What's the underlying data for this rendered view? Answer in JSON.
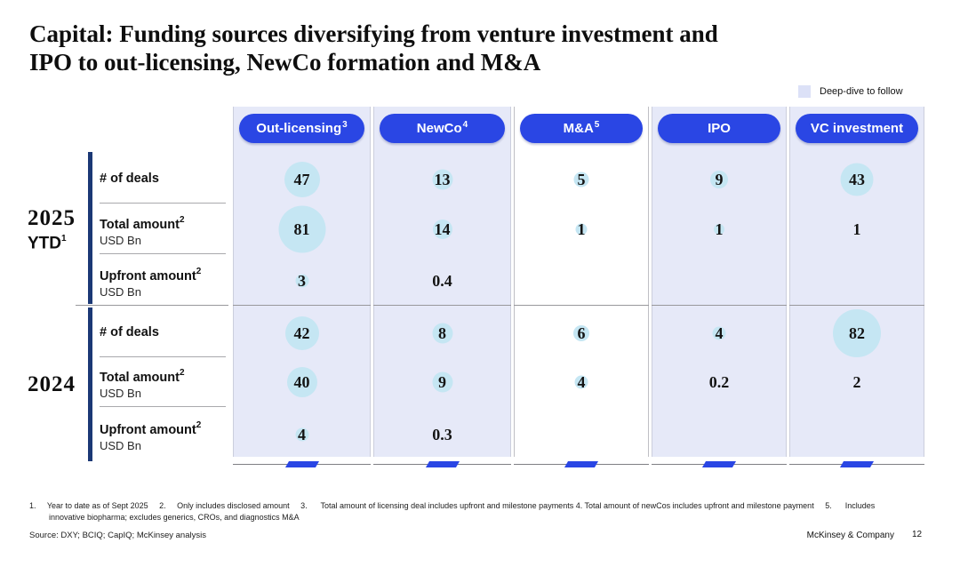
{
  "slide": {
    "title_line1": "Capital: Funding sources diversifying from venture investment and",
    "title_line2": "IPO to out-licensing, NewCo formation and M&A",
    "legend_label": "Deep-dive to follow",
    "footer": {
      "footnote_line1": "1.     Year to date as of Sept 2025     2.     Only includes disclosed amount     3.      Total amount of licensing deal includes upfront and milestone payments 4. Total amount of newCos includes upfront and milestone payment     5.      Includes",
      "footnote_line2": "innovative biopharma; excludes generics, CROs, and diagnostics M&A",
      "source": "Source: DXY; BCIQ; CapIQ; McKinsey analysis",
      "brand": "McKinsey & Company",
      "page": "12"
    }
  },
  "colors": {
    "accent_blue": "#2A46E4",
    "navy_bar": "#1B3875",
    "panel_lavender": "#E6E9F8",
    "bubble_blue": "#C5E6F3",
    "legend_swatch": "#DCE1F7"
  },
  "chart_data": {
    "type": "table",
    "title": "Capital: Funding sources diversifying from venture investment and IPO to out-licensing, NewCo formation and M&A",
    "units": "USD Bn (amount rows); bubble size proportional to value",
    "columns": [
      {
        "label": "Out-licensing",
        "sup": "3",
        "deep_dive": true,
        "cells": [
          {
            "v": "47",
            "bubble": 40
          },
          {
            "v": "81",
            "bubble": 53
          },
          {
            "v": "3",
            "bubble": 15
          },
          {
            "v": "42",
            "bubble": 38
          },
          {
            "v": "40",
            "bubble": 34
          },
          {
            "v": "4",
            "bubble": 15
          }
        ]
      },
      {
        "label": "NewCo",
        "sup": "4",
        "deep_dive": true,
        "cells": [
          {
            "v": "13",
            "bubble": 23
          },
          {
            "v": "14",
            "bubble": 22
          },
          {
            "v": "0.4",
            "bubble": 0
          },
          {
            "v": "8",
            "bubble": 23
          },
          {
            "v": "9",
            "bubble": 23
          },
          {
            "v": "0.3",
            "bubble": 0
          }
        ]
      },
      {
        "label": "M&A",
        "sup": "5",
        "deep_dive": false,
        "cells": [
          {
            "v": "5",
            "bubble": 17
          },
          {
            "v": "1",
            "bubble": 13
          },
          {
            "v": "",
            "bubble": 0
          },
          {
            "v": "6",
            "bubble": 18
          },
          {
            "v": "4",
            "bubble": 15
          },
          {
            "v": "",
            "bubble": 0
          }
        ]
      },
      {
        "label": "IPO",
        "sup": "",
        "deep_dive": true,
        "cells": [
          {
            "v": "9",
            "bubble": 20
          },
          {
            "v": "1",
            "bubble": 12
          },
          {
            "v": "",
            "bubble": 0
          },
          {
            "v": "4",
            "bubble": 15
          },
          {
            "v": "0.2",
            "bubble": 0
          },
          {
            "v": "",
            "bubble": 0
          }
        ]
      },
      {
        "label": "VC investment",
        "sup": "",
        "deep_dive": true,
        "cells": [
          {
            "v": "43",
            "bubble": 37
          },
          {
            "v": "1",
            "bubble": 0
          },
          {
            "v": "",
            "bubble": 0
          },
          {
            "v": "82",
            "bubble": 54
          },
          {
            "v": "2",
            "bubble": 0
          },
          {
            "v": "",
            "bubble": 0
          }
        ]
      }
    ],
    "row_groups": [
      {
        "year": "2025",
        "year_sub": "YTD",
        "year_sup": "1",
        "rows": [
          {
            "label": "# of deals",
            "sup": "",
            "unit": ""
          },
          {
            "label": "Total amount",
            "sup": "2",
            "unit": "USD Bn"
          },
          {
            "label": "Upfront amount",
            "sup": "2",
            "unit": "USD Bn"
          }
        ]
      },
      {
        "year": "2024",
        "year_sub": "",
        "year_sup": "",
        "rows": [
          {
            "label": "# of deals",
            "sup": "",
            "unit": ""
          },
          {
            "label": "Total amount",
            "sup": "2",
            "unit": "USD Bn"
          },
          {
            "label": "Upfront amount",
            "sup": "2",
            "unit": "USD Bn"
          }
        ]
      }
    ]
  }
}
